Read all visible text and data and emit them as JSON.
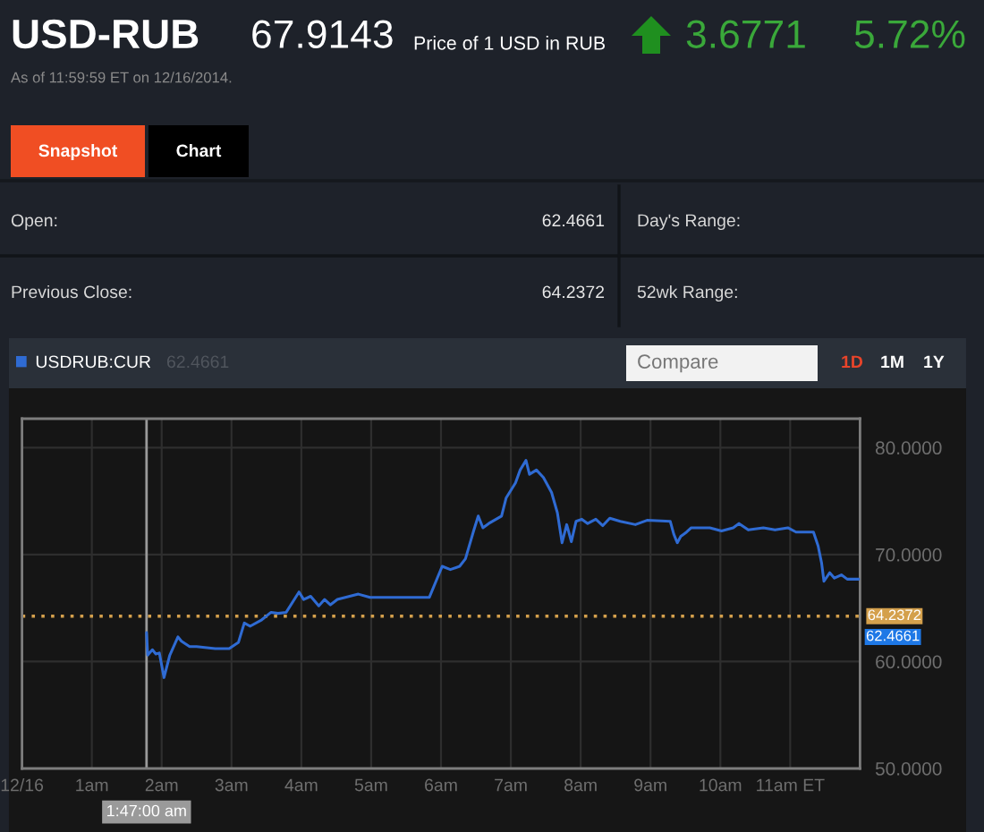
{
  "chart_data": {
    "type": "line",
    "title": "USD-RUB",
    "subtitle": "As of 11:59:59 ET on 12/16/2014.",
    "annotations": [
      "67.9143",
      "Price of 1 USD in RUB",
      "3.6771",
      "5.72%",
      "Snapshot",
      "Chart",
      "Open:",
      "62.4661",
      "Day's Range:",
      "Previous Close:",
      "64.2372",
      "52wk Range:",
      "62.4661",
      "Compare",
      "1D",
      "1M",
      "1Y",
      "62.4661"
    ],
    "x": [
      "2014-12-16T01:47",
      "2014-12-16T01:48",
      "2014-12-16T01:52",
      "2014-12-16T01:55",
      "2014-12-16T01:58",
      "2014-12-16T02:02",
      "2014-12-16T02:07",
      "2014-12-16T02:14",
      "2014-12-16T02:17",
      "2014-12-16T02:24",
      "2014-12-16T02:30",
      "2014-12-16T02:46",
      "2014-12-16T02:58",
      "2014-12-16T03:06",
      "2014-12-16T03:11",
      "2014-12-16T03:16",
      "2014-12-16T03:26",
      "2014-12-16T03:34",
      "2014-12-16T03:40",
      "2014-12-16T03:47",
      "2014-12-16T03:58",
      "2014-12-16T04:02",
      "2014-12-16T04:08",
      "2014-12-16T04:15",
      "2014-12-16T04:20",
      "2014-12-16T04:25",
      "2014-12-16T04:31",
      "2014-12-16T04:49",
      "2014-12-16T04:59",
      "2014-12-16T05:29",
      "2014-12-16T05:50",
      "2014-12-16T06:01",
      "2014-12-16T06:08",
      "2014-12-16T06:16",
      "2014-12-16T06:21",
      "2014-12-16T06:28",
      "2014-12-16T06:32",
      "2014-12-16T06:36",
      "2014-12-16T06:41",
      "2014-12-16T06:52",
      "2014-12-16T06:56",
      "2014-12-16T07:04",
      "2014-12-16T07:08",
      "2014-12-16T07:13",
      "2014-12-16T07:16",
      "2014-12-16T07:22",
      "2014-12-16T07:28",
      "2014-12-16T07:35",
      "2014-12-16T07:40",
      "2014-12-16T07:44",
      "2014-12-16T07:48",
      "2014-12-16T07:52",
      "2014-12-16T07:56",
      "2014-12-16T08:01",
      "2014-12-16T08:06",
      "2014-12-16T08:13",
      "2014-12-16T08:19",
      "2014-12-16T08:25",
      "2014-12-16T08:34",
      "2014-12-16T08:47",
      "2014-12-16T08:57",
      "2014-12-16T09:17",
      "2014-12-16T09:20",
      "2014-12-16T09:23",
      "2014-12-16T09:26",
      "2014-12-16T09:31",
      "2014-12-16T09:35",
      "2014-12-16T09:51",
      "2014-12-16T10:01",
      "2014-12-16T10:11",
      "2014-12-16T10:16",
      "2014-12-16T10:24",
      "2014-12-16T10:37",
      "2014-12-16T10:47",
      "2014-12-16T10:58",
      "2014-12-16T11:05",
      "2014-12-16T11:20",
      "2014-12-16T11:24",
      "2014-12-16T11:27",
      "2014-12-16T11:29",
      "2014-12-16T11:34",
      "2014-12-16T11:38",
      "2014-12-16T11:44",
      "2014-12-16T11:49",
      "2014-12-16T11:59"
    ],
    "series": [
      {
        "name": "USDRUB:CUR",
        "color": "#2f6bd3",
        "values": [
          62.7,
          60.6,
          61.1,
          60.7,
          60.8,
          58.5,
          60.6,
          62.3,
          61.9,
          61.4,
          61.4,
          61.2,
          61.2,
          61.8,
          63.6,
          63.3,
          63.9,
          64.6,
          64.5,
          64.6,
          66.5,
          65.8,
          66.1,
          65.2,
          65.8,
          65.3,
          65.8,
          66.3,
          66.0,
          66.0,
          66.0,
          68.9,
          68.6,
          68.9,
          69.6,
          72.2,
          73.6,
          72.5,
          72.9,
          73.6,
          75.3,
          76.7,
          77.9,
          78.8,
          77.5,
          77.9,
          77.2,
          75.8,
          73.9,
          71.1,
          72.8,
          71.2,
          73.1,
          73.3,
          72.9,
          73.3,
          72.7,
          73.4,
          73.1,
          72.8,
          73.2,
          73.1,
          71.9,
          71.1,
          71.7,
          72.1,
          72.5,
          72.5,
          72.2,
          72.5,
          72.9,
          72.3,
          72.5,
          72.3,
          72.5,
          72.1,
          72.1,
          70.8,
          69.2,
          67.5,
          68.3,
          67.8,
          68.1,
          67.7,
          67.7
        ]
      }
    ],
    "xlim": [
      "2014-12-16T00:00",
      "2014-12-16T12:00"
    ],
    "ylim": [
      50,
      82.7
    ],
    "xticks": [
      {
        "value": "2014-12-16T00:00",
        "label": "12/16"
      },
      {
        "value": "2014-12-16T01:00",
        "label": "1am"
      },
      {
        "value": "2014-12-16T02:00",
        "label": "2am"
      },
      {
        "value": "2014-12-16T03:00",
        "label": "3am"
      },
      {
        "value": "2014-12-16T04:00",
        "label": "4am"
      },
      {
        "value": "2014-12-16T05:00",
        "label": "5am"
      },
      {
        "value": "2014-12-16T06:00",
        "label": "6am"
      },
      {
        "value": "2014-12-16T07:00",
        "label": "7am"
      },
      {
        "value": "2014-12-16T08:00",
        "label": "8am"
      },
      {
        "value": "2014-12-16T09:00",
        "label": "9am"
      },
      {
        "value": "2014-12-16T10:00",
        "label": "10am"
      },
      {
        "value": "2014-12-16T11:00",
        "label": "11am ET"
      }
    ],
    "yticks": [
      {
        "value": 50,
        "label": "50.0000"
      },
      {
        "value": 60,
        "label": "60.0000"
      },
      {
        "value": 70,
        "label": "70.0000"
      },
      {
        "value": 80,
        "label": "80.0000"
      }
    ],
    "grid": true,
    "legend": "top left",
    "ref_lines": [
      {
        "axis": "y",
        "value": 64.2372,
        "label": "64.2372",
        "color": "#d4a04c",
        "line_style": "dotted"
      },
      {
        "axis": "x",
        "value": "2014-12-16T01:47",
        "label": "1:47:00 am",
        "color": "#9a9a9a",
        "line_style": "solid"
      }
    ]
  }
}
